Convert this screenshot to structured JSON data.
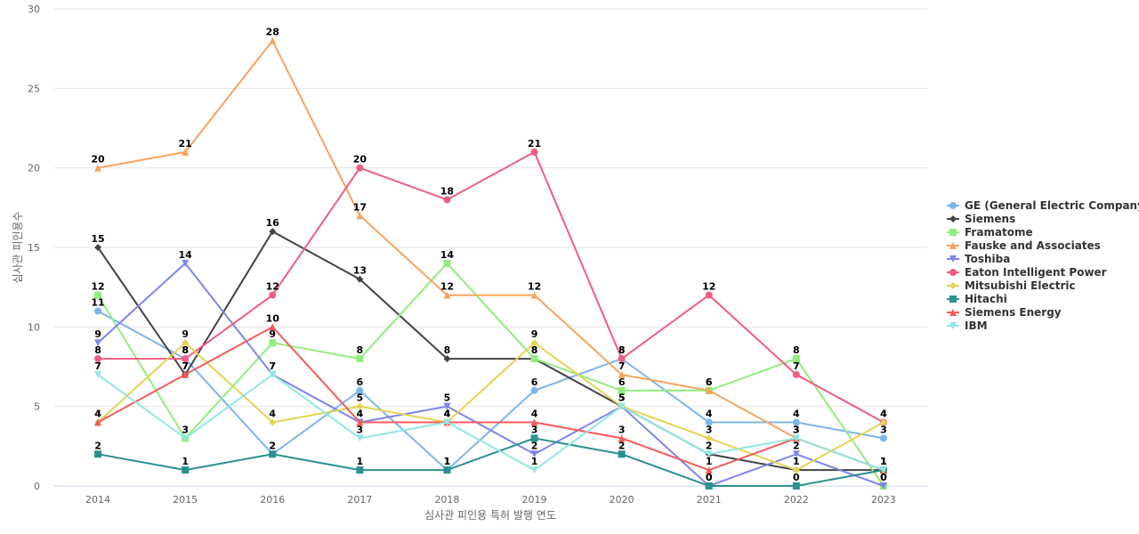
{
  "chart_data": {
    "type": "line",
    "title": "",
    "xlabel": "심사관 피인용 특허 발행 연도",
    "ylabel": "심사관 피인용수",
    "categories": [
      "2014",
      "2015",
      "2016",
      "2017",
      "2018",
      "2019",
      "2020",
      "2021",
      "2022",
      "2023"
    ],
    "ylim": [
      0,
      30
    ],
    "yticks": [
      0,
      5,
      10,
      15,
      20,
      25,
      30
    ],
    "grid": true,
    "legend_position": "right",
    "series": [
      {
        "name": "GE (General Electric Company)",
        "color": "#7cb5ec",
        "marker": "circle",
        "values": [
          11,
          8,
          2,
          6,
          1,
          6,
          8,
          4,
          4,
          3
        ]
      },
      {
        "name": "Siemens",
        "color": "#434348",
        "marker": "diamond",
        "values": [
          15,
          7,
          16,
          13,
          8,
          8,
          5,
          2,
          1,
          1
        ]
      },
      {
        "name": "Framatome",
        "color": "#90ed7d",
        "marker": "square",
        "values": [
          12,
          3,
          9,
          8,
          14,
          8,
          6,
          6,
          8,
          0
        ]
      },
      {
        "name": "Fauske and Associates",
        "color": "#f7a35c",
        "marker": "triangle",
        "values": [
          20,
          21,
          28,
          17,
          12,
          12,
          7,
          6,
          3,
          1
        ]
      },
      {
        "name": "Toshiba",
        "color": "#8085e9",
        "marker": "triangle-down",
        "values": [
          9,
          14,
          7,
          4,
          5,
          2,
          5,
          0,
          2,
          0
        ]
      },
      {
        "name": "Eaton Intelligent Power",
        "color": "#f15c80",
        "marker": "circle",
        "values": [
          8,
          8,
          12,
          20,
          18,
          21,
          8,
          12,
          7,
          4
        ]
      },
      {
        "name": "Mitsubishi Electric",
        "color": "#e4d354",
        "marker": "diamond",
        "values": [
          4,
          9,
          4,
          5,
          4,
          9,
          5,
          3,
          1,
          4
        ]
      },
      {
        "name": "Hitachi",
        "color": "#2b908f",
        "marker": "square",
        "values": [
          2,
          1,
          2,
          1,
          1,
          3,
          2,
          0,
          0,
          1
        ]
      },
      {
        "name": "Siemens Energy",
        "color": "#f45b5b",
        "marker": "triangle",
        "values": [
          4,
          7,
          10,
          4,
          4,
          4,
          3,
          1,
          3,
          1
        ]
      },
      {
        "name": "IBM",
        "color": "#91e8e1",
        "marker": "triangle-down",
        "values": [
          7,
          3,
          7,
          3,
          4,
          1,
          5,
          2,
          3,
          1
        ]
      }
    ]
  }
}
